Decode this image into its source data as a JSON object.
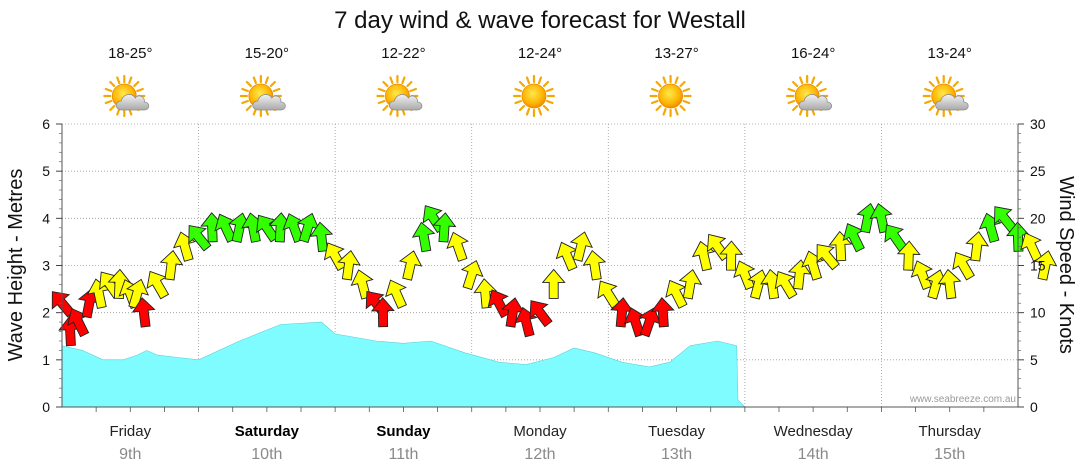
{
  "chart_data": {
    "type": "area",
    "title": "7 day wind & wave forecast for Westall",
    "ylabel_left": "Wave Height - Metres",
    "ylabel_right": "Wind Speed - Knots",
    "ylim_left": [
      0,
      6
    ],
    "ylim_right": [
      0,
      30
    ],
    "yticks_left": [
      "0",
      "1",
      "2",
      "3",
      "4",
      "5",
      "6"
    ],
    "yticks_right": [
      "0",
      "5",
      "10",
      "15",
      "20",
      "25",
      "30"
    ],
    "credit": "www.seabreeze.com.au",
    "days": [
      {
        "name": "Friday",
        "date": "9th",
        "temp": "18-25°",
        "weather": "partly-cloudy",
        "bold": false
      },
      {
        "name": "Saturday",
        "date": "10th",
        "temp": "15-20°",
        "weather": "partly-cloudy",
        "bold": true
      },
      {
        "name": "Sunday",
        "date": "11th",
        "temp": "12-22°",
        "weather": "partly-cloudy",
        "bold": true
      },
      {
        "name": "Monday",
        "date": "12th",
        "temp": "12-24°",
        "weather": "sunny",
        "bold": false
      },
      {
        "name": "Tuesday",
        "date": "13th",
        "temp": "13-27°",
        "weather": "sunny",
        "bold": false
      },
      {
        "name": "Wednesday",
        "date": "14th",
        "temp": "16-24°",
        "weather": "partly-cloudy",
        "bold": false
      },
      {
        "name": "Thursday",
        "date": "15th",
        "temp": "13-24°",
        "weather": "partly-cloudy",
        "bold": false
      }
    ],
    "wave_series": {
      "name": "Wave Height (m)",
      "color": "#7ffcff",
      "points": [
        [
          0,
          1.3
        ],
        [
          0.15,
          1.2
        ],
        [
          0.3,
          1.0
        ],
        [
          0.45,
          1.0
        ],
        [
          0.55,
          1.1
        ],
        [
          0.62,
          1.2
        ],
        [
          0.7,
          1.1
        ],
        [
          0.85,
          1.05
        ],
        [
          1.0,
          1.0
        ],
        [
          1.3,
          1.4
        ],
        [
          1.6,
          1.75
        ],
        [
          1.9,
          1.8
        ],
        [
          2.0,
          1.55
        ],
        [
          2.3,
          1.4
        ],
        [
          2.5,
          1.35
        ],
        [
          2.7,
          1.4
        ],
        [
          2.95,
          1.15
        ],
        [
          3.2,
          0.95
        ],
        [
          3.4,
          0.9
        ],
        [
          3.6,
          1.05
        ],
        [
          3.75,
          1.25
        ],
        [
          3.9,
          1.15
        ],
        [
          4.1,
          0.95
        ],
        [
          4.3,
          0.85
        ],
        [
          4.45,
          0.95
        ],
        [
          4.6,
          1.3
        ],
        [
          4.8,
          1.4
        ],
        [
          4.94,
          1.3
        ],
        [
          4.95,
          0.15
        ],
        [
          5.0,
          0
        ]
      ]
    },
    "wind_series": {
      "name": "Wind Speed (knots)",
      "colors": {
        "strong": "#ff0000",
        "moderate": "#ffff00",
        "fresh": "#33ff00"
      },
      "points": [
        [
          0.0,
          11
        ],
        [
          0.06,
          8
        ],
        [
          0.12,
          9
        ],
        [
          0.2,
          11
        ],
        [
          0.27,
          12
        ],
        [
          0.35,
          13
        ],
        [
          0.42,
          13
        ],
        [
          0.5,
          12
        ],
        [
          0.55,
          12
        ],
        [
          0.6,
          10
        ],
        [
          0.7,
          13
        ],
        [
          0.8,
          15
        ],
        [
          0.9,
          17
        ],
        [
          1.0,
          18
        ],
        [
          1.1,
          19
        ],
        [
          1.2,
          19
        ],
        [
          1.3,
          19
        ],
        [
          1.4,
          19
        ],
        [
          1.5,
          19
        ],
        [
          1.6,
          19
        ],
        [
          1.7,
          19
        ],
        [
          1.8,
          19
        ],
        [
          1.9,
          18
        ],
        [
          2.0,
          16
        ],
        [
          2.1,
          15
        ],
        [
          2.2,
          13
        ],
        [
          2.3,
          11
        ],
        [
          2.35,
          10
        ],
        [
          2.45,
          12
        ],
        [
          2.55,
          15
        ],
        [
          2.65,
          18
        ],
        [
          2.72,
          20
        ],
        [
          2.8,
          19
        ],
        [
          2.9,
          17
        ],
        [
          3.0,
          14
        ],
        [
          3.1,
          12
        ],
        [
          3.2,
          11
        ],
        [
          3.3,
          10
        ],
        [
          3.4,
          9
        ],
        [
          3.5,
          10
        ],
        [
          3.6,
          13
        ],
        [
          3.7,
          16
        ],
        [
          3.8,
          17
        ],
        [
          3.9,
          15
        ],
        [
          4.0,
          12
        ],
        [
          4.1,
          10
        ],
        [
          4.2,
          9
        ],
        [
          4.3,
          9
        ],
        [
          4.4,
          10
        ],
        [
          4.5,
          12
        ],
        [
          4.6,
          13
        ],
        [
          4.7,
          16
        ],
        [
          4.8,
          17
        ],
        [
          4.9,
          16
        ],
        [
          5.0,
          14
        ],
        [
          5.1,
          13
        ],
        [
          5.2,
          13
        ],
        [
          5.3,
          13
        ],
        [
          5.4,
          14
        ],
        [
          5.5,
          15
        ],
        [
          5.6,
          16
        ],
        [
          5.7,
          17
        ],
        [
          5.8,
          18
        ],
        [
          5.9,
          20
        ],
        [
          6.0,
          20
        ],
        [
          6.1,
          18
        ],
        [
          6.2,
          16
        ],
        [
          6.3,
          14
        ],
        [
          6.4,
          13
        ],
        [
          6.5,
          13
        ],
        [
          6.6,
          15
        ],
        [
          6.7,
          17
        ],
        [
          6.8,
          19
        ],
        [
          6.9,
          20
        ],
        [
          7.0,
          18
        ],
        [
          7.1,
          17
        ],
        [
          7.2,
          15
        ]
      ]
    }
  }
}
